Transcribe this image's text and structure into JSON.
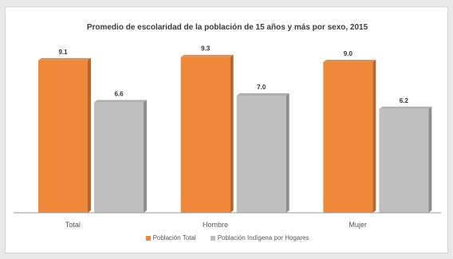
{
  "chart_data": {
    "type": "bar",
    "title": "Promedio de escolaridad de la población de 15 años y más por sexo, 2015",
    "categories": [
      "Total",
      "Hombre",
      "Mujer"
    ],
    "series": [
      {
        "name": "Población Total",
        "values": [
          9.1,
          9.3,
          9.0
        ],
        "color": "#f0883a"
      },
      {
        "name": "Población Indígena por Hogares",
        "values": [
          6.6,
          7.0,
          6.2
        ],
        "color": "#bfbfbf"
      }
    ],
    "value_labels": [
      [
        "9.1",
        "9.3",
        "9.0"
      ],
      [
        "6.6",
        "7.0",
        "6.2"
      ]
    ],
    "xlabel": "",
    "ylabel": "",
    "ylim": [
      0,
      10.5
    ],
    "grid": false,
    "legend_position": "bottom"
  }
}
